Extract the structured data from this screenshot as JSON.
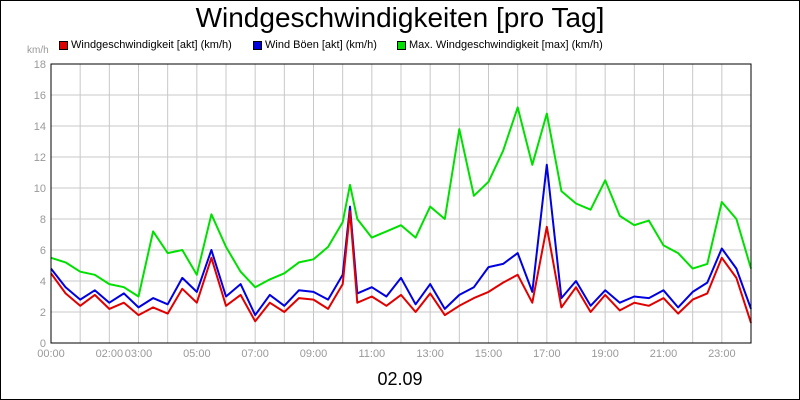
{
  "chart_data": {
    "type": "line",
    "title": "Windgeschwindigkeiten [pro Tag]",
    "ylabel": "km/h",
    "xlabel": "02.09",
    "ylim": [
      0,
      18
    ],
    "yticks": [
      "0",
      "2",
      "4",
      "6",
      "8",
      "10",
      "12",
      "14",
      "16",
      "18"
    ],
    "xlim": [
      0,
      24
    ],
    "xticks": [
      {
        "x": 0,
        "label": "00:00"
      },
      {
        "x": 2,
        "label": "02:00"
      },
      {
        "x": 3,
        "label": "03:00"
      },
      {
        "x": 5,
        "label": "05:00"
      },
      {
        "x": 7,
        "label": "07:00"
      },
      {
        "x": 9,
        "label": "09:00"
      },
      {
        "x": 11,
        "label": "11:00"
      },
      {
        "x": 13,
        "label": "13:00"
      },
      {
        "x": 15,
        "label": "15:00"
      },
      {
        "x": 17,
        "label": "17:00"
      },
      {
        "x": 19,
        "label": "19:00"
      },
      {
        "x": 21,
        "label": "21:00"
      },
      {
        "x": 23,
        "label": "23:00"
      }
    ],
    "grid": true,
    "legend_position": "top",
    "series": [
      {
        "name": "Windgeschwindigkeit [akt] (km/h)",
        "color": "#e00000",
        "x": [
          0,
          0.5,
          1,
          1.5,
          2,
          2.5,
          3,
          3.5,
          4,
          4.5,
          5,
          5.5,
          6,
          6.5,
          7,
          7.5,
          8,
          8.5,
          9,
          9.5,
          10,
          10.25,
          10.5,
          11,
          11.5,
          12,
          12.5,
          13,
          13.5,
          14,
          14.5,
          15,
          15.5,
          16,
          16.5,
          17,
          17.5,
          18,
          18.5,
          19,
          19.5,
          20,
          20.5,
          21,
          21.5,
          22,
          22.5,
          23,
          23.5,
          24
        ],
        "y": [
          4.5,
          3.2,
          2.4,
          3.1,
          2.2,
          2.6,
          1.8,
          2.3,
          1.9,
          3.5,
          2.6,
          5.5,
          2.4,
          3.1,
          1.4,
          2.6,
          2.0,
          2.9,
          2.8,
          2.2,
          3.8,
          8.5,
          2.6,
          3.0,
          2.4,
          3.1,
          2.0,
          3.2,
          1.8,
          2.4,
          2.9,
          3.3,
          3.9,
          4.4,
          2.6,
          7.5,
          2.3,
          3.6,
          2.0,
          3.1,
          2.1,
          2.6,
          2.4,
          2.9,
          1.9,
          2.8,
          3.2,
          5.5,
          4.2,
          1.3
        ]
      },
      {
        "name": "Wind Böen [akt] (km/h)",
        "color": "#0000e0",
        "x": [
          0,
          0.5,
          1,
          1.5,
          2,
          2.5,
          3,
          3.5,
          4,
          4.5,
          5,
          5.5,
          6,
          6.5,
          7,
          7.5,
          8,
          8.5,
          9,
          9.5,
          10,
          10.25,
          10.5,
          11,
          11.5,
          12,
          12.5,
          13,
          13.5,
          14,
          14.5,
          15,
          15.5,
          16,
          16.5,
          17,
          17.5,
          18,
          18.5,
          19,
          19.5,
          20,
          20.5,
          21,
          21.5,
          22,
          22.5,
          23,
          23.5,
          24
        ],
        "y": [
          4.8,
          3.6,
          2.8,
          3.4,
          2.6,
          3.2,
          2.3,
          2.9,
          2.5,
          4.2,
          3.3,
          6.0,
          3.0,
          3.8,
          1.8,
          3.1,
          2.4,
          3.4,
          3.3,
          2.8,
          4.4,
          8.8,
          3.2,
          3.6,
          3.0,
          4.2,
          2.5,
          3.8,
          2.2,
          3.1,
          3.6,
          4.9,
          5.1,
          5.8,
          3.3,
          11.5,
          2.9,
          4.0,
          2.4,
          3.4,
          2.6,
          3.0,
          2.9,
          3.4,
          2.3,
          3.3,
          3.9,
          6.1,
          4.8,
          2.2
        ]
      },
      {
        "name": "Max. Windgeschwindigkeit [max] (km/h)",
        "color": "#00e000",
        "x": [
          0,
          0.5,
          1,
          1.5,
          2,
          2.5,
          3,
          3.5,
          4,
          4.5,
          5,
          5.5,
          6,
          6.5,
          7,
          7.5,
          8,
          8.5,
          9,
          9.5,
          10,
          10.25,
          10.5,
          11,
          11.5,
          12,
          12.5,
          13,
          13.5,
          14,
          14.5,
          15,
          15.5,
          16,
          16.5,
          17,
          17.5,
          18,
          18.5,
          19,
          19.5,
          20,
          20.5,
          21,
          21.5,
          22,
          22.5,
          23,
          23.5,
          24
        ],
        "y": [
          5.5,
          5.2,
          4.6,
          4.4,
          3.8,
          3.6,
          3.0,
          7.2,
          5.8,
          6.0,
          4.4,
          8.3,
          6.2,
          4.6,
          3.6,
          4.1,
          4.5,
          5.2,
          5.4,
          6.2,
          7.8,
          10.2,
          8.0,
          6.8,
          7.2,
          7.6,
          6.8,
          8.8,
          8.0,
          13.8,
          9.5,
          10.4,
          12.4,
          15.2,
          11.5,
          14.8,
          9.8,
          9.0,
          8.6,
          10.5,
          8.2,
          7.6,
          7.9,
          6.3,
          5.8,
          4.8,
          5.1,
          9.1,
          8.0,
          4.8
        ]
      }
    ]
  }
}
